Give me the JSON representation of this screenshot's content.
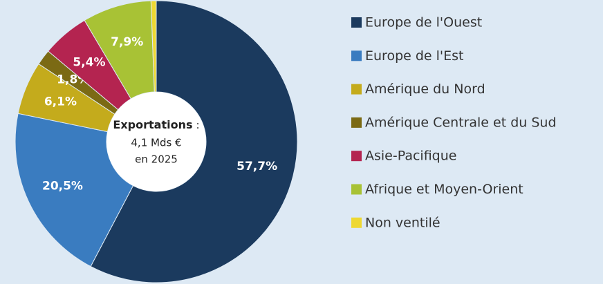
{
  "chart_data": {
    "type": "pie",
    "categories": [
      "Europe de l'Ouest",
      "Europe de l'Est",
      "Amérique du Nord",
      "Amérique Centrale et du Sud",
      "Asie-Pacifique",
      "Afrique et Moyen-Orient",
      "Non ventilé"
    ],
    "values": [
      57.7,
      20.5,
      6.1,
      1.8,
      5.4,
      7.9,
      0.6
    ],
    "value_labels": [
      "57,7%",
      "20,5%",
      "6,1%",
      "1,8%",
      "5,4%",
      "7,9%",
      null
    ],
    "colors": [
      "#1b3a5e",
      "#3a7cc0",
      "#c4ab1c",
      "#7b6a14",
      "#b42450",
      "#a8c235",
      "#eed832"
    ],
    "center_label": {
      "title": "Exportations",
      "separator": ":",
      "lines": [
        "4,1 Mds €",
        "en 2025"
      ]
    },
    "legend": "right"
  }
}
